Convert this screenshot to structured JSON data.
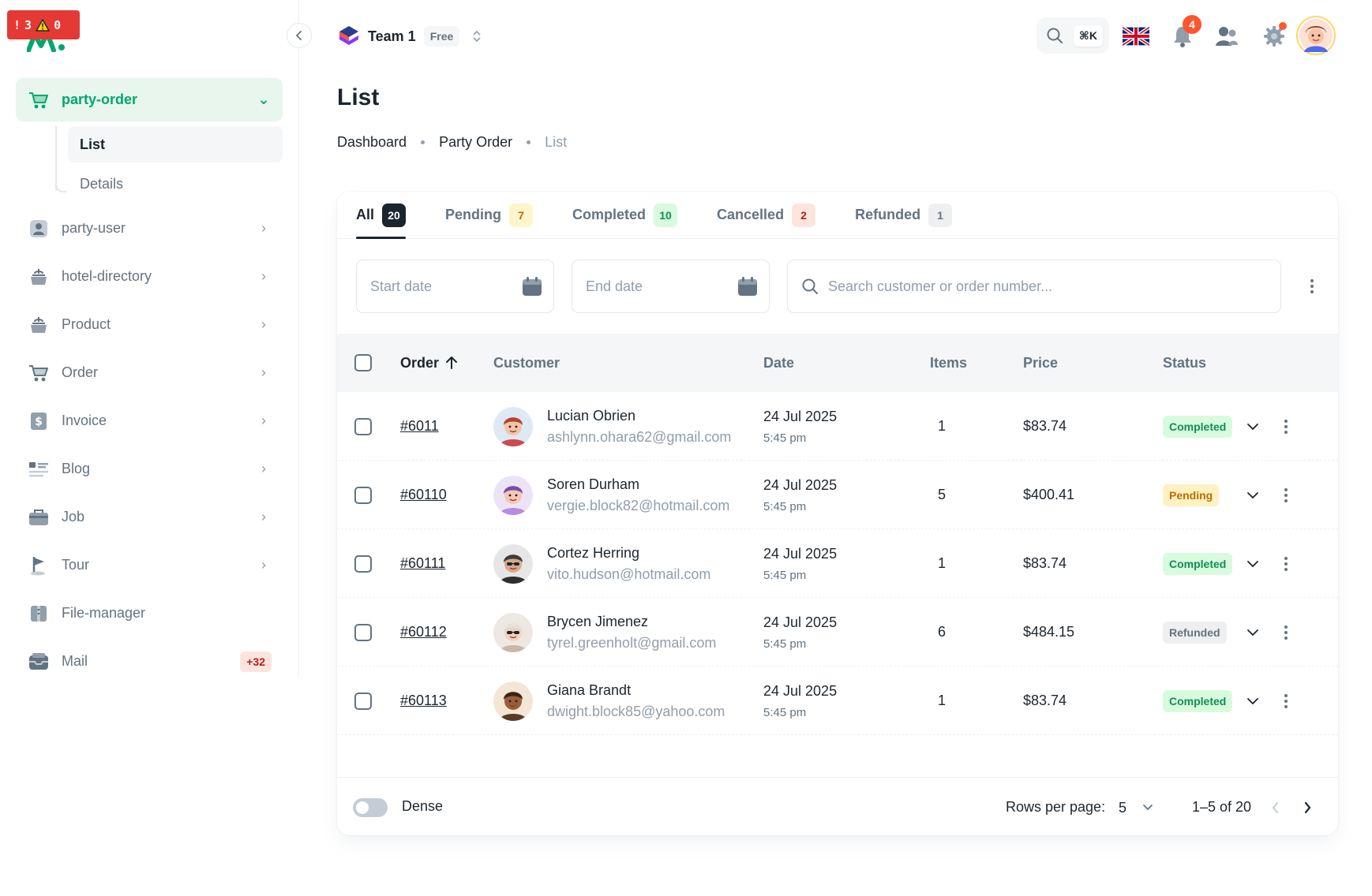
{
  "error_badge": {
    "errors": "3",
    "warnings": "0"
  },
  "colors": {
    "accent": "#00a76f",
    "text": "#1c252e",
    "muted": "#637381"
  },
  "sidebar": {
    "collapse_icon": "chevron-left-icon",
    "active_group": {
      "label": "party-order",
      "icon": "cart-icon"
    },
    "sub_items": [
      {
        "label": "List",
        "active": true
      },
      {
        "label": "Details",
        "active": false
      }
    ],
    "items": [
      {
        "label": "party-user",
        "icon": "user-icon"
      },
      {
        "label": "hotel-directory",
        "icon": "tour-bag-icon"
      },
      {
        "label": "Product",
        "icon": "tour-bag-icon"
      },
      {
        "label": "Order",
        "icon": "cart-icon"
      },
      {
        "label": "Invoice",
        "icon": "invoice-icon"
      },
      {
        "label": "Blog",
        "icon": "blog-icon"
      },
      {
        "label": "Job",
        "icon": "job-icon"
      },
      {
        "label": "Tour",
        "icon": "flag-icon"
      },
      {
        "label": "File-manager",
        "icon": "folder-icon"
      },
      {
        "label": "Mail",
        "icon": "mail-icon",
        "badge": "+32"
      }
    ]
  },
  "header": {
    "team_name": "Team 1",
    "plan": "Free",
    "search_shortcut": "⌘K",
    "notifications_count": "4"
  },
  "page": {
    "title": "List",
    "breadcrumbs": [
      "Dashboard",
      "Party Order",
      "List"
    ]
  },
  "tabs": [
    {
      "label": "All",
      "count": "20",
      "active": true,
      "bg": "#1c252e",
      "fg": "#ffffff"
    },
    {
      "label": "Pending",
      "count": "7",
      "active": false,
      "bg": "#fff5cc",
      "fg": "#b76e00"
    },
    {
      "label": "Completed",
      "count": "10",
      "active": false,
      "bg": "#d8fbde",
      "fg": "#118d57"
    },
    {
      "label": "Cancelled",
      "count": "2",
      "active": false,
      "bg": "#ffe4de",
      "fg": "#b71d18"
    },
    {
      "label": "Refunded",
      "count": "1",
      "active": false,
      "bg": "#edeff1",
      "fg": "#637381"
    }
  ],
  "filters": {
    "start_date_placeholder": "Start date",
    "end_date_placeholder": "End date",
    "search_placeholder": "Search customer or order number..."
  },
  "table": {
    "columns": [
      "Order",
      "Customer",
      "Date",
      "Items",
      "Price",
      "Status"
    ],
    "sort_column": "Order",
    "rows": [
      {
        "order": "#6011",
        "name": "Lucian Obrien",
        "email": "ashlynn.ohara62@gmail.com",
        "date": "24 Jul 2025",
        "time": "5:45 pm",
        "items": "1",
        "price": "$83.74",
        "status": "Completed",
        "avatar": "avatar-1"
      },
      {
        "order": "#60110",
        "name": "Soren Durham",
        "email": "vergie.block82@hotmail.com",
        "date": "24 Jul 2025",
        "time": "5:45 pm",
        "items": "5",
        "price": "$400.41",
        "status": "Pending",
        "avatar": "avatar-2"
      },
      {
        "order": "#60111",
        "name": "Cortez Herring",
        "email": "vito.hudson@hotmail.com",
        "date": "24 Jul 2025",
        "time": "5:45 pm",
        "items": "1",
        "price": "$83.74",
        "status": "Completed",
        "avatar": "avatar-3"
      },
      {
        "order": "#60112",
        "name": "Brycen Jimenez",
        "email": "tyrel.greenholt@gmail.com",
        "date": "24 Jul 2025",
        "time": "5:45 pm",
        "items": "6",
        "price": "$484.15",
        "status": "Refunded",
        "avatar": "avatar-4"
      },
      {
        "order": "#60113",
        "name": "Giana Brandt",
        "email": "dwight.block85@yahoo.com",
        "date": "24 Jul 2025",
        "time": "5:45 pm",
        "items": "1",
        "price": "$83.74",
        "status": "Completed",
        "avatar": "avatar-5"
      }
    ]
  },
  "status_styles": {
    "Completed": {
      "bg": "#d8fbde",
      "fg": "#118d57"
    },
    "Pending": {
      "bg": "#fff1c2",
      "fg": "#b76e00"
    },
    "Refunded": {
      "bg": "#edeff1",
      "fg": "#637381"
    }
  },
  "footer": {
    "dense_label": "Dense",
    "rows_per_page_label": "Rows per page:",
    "rows_per_page_value": "5",
    "range_text": "1–5 of 20"
  }
}
